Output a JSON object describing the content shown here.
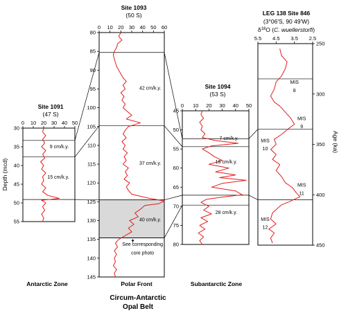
{
  "figure": {
    "belt_title": [
      "Circum-Antarctic",
      "Opal Belt"
    ],
    "zones": [
      "Antarctic Zone",
      "Polar Front",
      "Subantarctic Zone"
    ],
    "colors": {
      "series": "#e31a1c",
      "axes": "#000000",
      "shade": "#d9d9d9"
    }
  },
  "chart_data": [
    {
      "id": "site1091",
      "type": "line",
      "title": "Site 1091",
      "subtitle": "(47 S)",
      "ylabel": "Depth (mcd)",
      "xlim": [
        0,
        50
      ],
      "xticks": [
        0,
        10,
        20,
        30,
        40,
        50
      ],
      "ylim": [
        30,
        55
      ],
      "yticks": [
        30,
        35,
        40,
        45,
        50,
        55
      ],
      "boundaries": [
        33.3,
        37.7,
        49.1
      ],
      "annotations": [
        {
          "text": "9 cm/k.y.",
          "x": 35,
          "y": 35.4
        },
        {
          "text": "15 cm/k.y.",
          "x": 34,
          "y": 43.5
        }
      ],
      "series": [
        {
          "points": [
            [
              20,
              30
            ],
            [
              19,
              31
            ],
            [
              22,
              32
            ],
            [
              19,
              33
            ],
            [
              21,
              34
            ],
            [
              18,
              35
            ],
            [
              22,
              36
            ],
            [
              19,
              37
            ],
            [
              21,
              38
            ],
            [
              17,
              39
            ],
            [
              20,
              40
            ],
            [
              18,
              41
            ],
            [
              22,
              42
            ],
            [
              19,
              43
            ],
            [
              20,
              44
            ],
            [
              18,
              45
            ],
            [
              22,
              46
            ],
            [
              19,
              47
            ],
            [
              24,
              48
            ],
            [
              35,
              48.8
            ],
            [
              18,
              49.3
            ],
            [
              22,
              50
            ],
            [
              19,
              51
            ],
            [
              21,
              52
            ],
            [
              18,
              53
            ],
            [
              20,
              54
            ],
            [
              19,
              55
            ]
          ]
        }
      ]
    },
    {
      "id": "site1093",
      "type": "line",
      "title": "Site 1093",
      "subtitle": "(50 S)",
      "xlim": [
        0,
        60
      ],
      "xticks": [
        0,
        10,
        20,
        30,
        40,
        50,
        60
      ],
      "ylim": [
        80,
        145
      ],
      "yticks": [
        80,
        85,
        90,
        95,
        100,
        105,
        110,
        115,
        120,
        125,
        130,
        135,
        140,
        145
      ],
      "boundaries": [
        85.3,
        104.8,
        124.5,
        134.6
      ],
      "shaded_interval": [
        124.5,
        134.6
      ],
      "annotations": [
        {
          "text": "42 cm/k.y.",
          "x": 47,
          "y": 95.2
        },
        {
          "text": "37 cm/k.y.",
          "x": 47,
          "y": 115.2
        },
        {
          "text": "40 cm/k.y.",
          "x": 47,
          "y": 130.2
        },
        {
          "text": "See corresponding",
          "x": 40,
          "y": 136.7
        },
        {
          "text": "core photo",
          "x": 40,
          "y": 139.0
        }
      ],
      "series": [
        {
          "points": [
            [
              20,
              80
            ],
            [
              18,
              81
            ],
            [
              21,
              82
            ],
            [
              17,
              83
            ],
            [
              16,
              84
            ],
            [
              14,
              85
            ],
            [
              13,
              86
            ],
            [
              14,
              87
            ],
            [
              15,
              88
            ],
            [
              16,
              89
            ],
            [
              18,
              90
            ],
            [
              20,
              91
            ],
            [
              22,
              92
            ],
            [
              25,
              93
            ],
            [
              22,
              94
            ],
            [
              24,
              95
            ],
            [
              20,
              96
            ],
            [
              23,
              97
            ],
            [
              21,
              98
            ],
            [
              24,
              99
            ],
            [
              22,
              100
            ],
            [
              26,
              101
            ],
            [
              30,
              102
            ],
            [
              25,
              103
            ],
            [
              38,
              104
            ],
            [
              27,
              105
            ],
            [
              24,
              106
            ],
            [
              22,
              107
            ],
            [
              25,
              108
            ],
            [
              21,
              109
            ],
            [
              24,
              110
            ],
            [
              22,
              111
            ],
            [
              26,
              112
            ],
            [
              23,
              113
            ],
            [
              25,
              114
            ],
            [
              22,
              115
            ],
            [
              27,
              116
            ],
            [
              24,
              117
            ],
            [
              26,
              118
            ],
            [
              23,
              119
            ],
            [
              28,
              120
            ],
            [
              25,
              121
            ],
            [
              27,
              122
            ],
            [
              30,
              123
            ],
            [
              45,
              124
            ],
            [
              60,
              124.8
            ],
            [
              55,
              125.5
            ],
            [
              42,
              126
            ],
            [
              38,
              127
            ],
            [
              33,
              128
            ],
            [
              36,
              129
            ],
            [
              28,
              130
            ],
            [
              32,
              131
            ],
            [
              27,
              132
            ],
            [
              30,
              133
            ],
            [
              24,
              134
            ],
            [
              18,
              135
            ],
            [
              15,
              136
            ],
            [
              17,
              137
            ],
            [
              14,
              138
            ],
            [
              16,
              139
            ],
            [
              14,
              140
            ],
            [
              15,
              141
            ],
            [
              13,
              142
            ],
            [
              16,
              143
            ],
            [
              14,
              144
            ],
            [
              15,
              145
            ]
          ]
        }
      ]
    },
    {
      "id": "site1094",
      "type": "line",
      "title": "Site 1094",
      "subtitle": "(53 S)",
      "xlim": [
        0,
        50
      ],
      "xticks": [
        0,
        10,
        20,
        30,
        40,
        50
      ],
      "ylim": [
        45,
        80
      ],
      "yticks": [
        45,
        50,
        55,
        60,
        65,
        70,
        75,
        80
      ],
      "boundaries": [
        52.3,
        54.4,
        67.1,
        69.7
      ],
      "annotations": [
        {
          "text": "7 cm/k.y.",
          "x": 35,
          "y": 52.6
        },
        {
          "text": "18 cm/k.y.",
          "x": 33,
          "y": 58.8
        },
        {
          "text": "28 cm/k.y.",
          "x": 33,
          "y": 72.0
        }
      ],
      "series": [
        {
          "points": [
            [
              15,
              45
            ],
            [
              14,
              46
            ],
            [
              16,
              47
            ],
            [
              13,
              48
            ],
            [
              15,
              49
            ],
            [
              14,
              50
            ],
            [
              17,
              51
            ],
            [
              15,
              52
            ],
            [
              25,
              52.8
            ],
            [
              42,
              53.5
            ],
            [
              22,
              54.2
            ],
            [
              15,
              55
            ],
            [
              20,
              56
            ],
            [
              24,
              57
            ],
            [
              30,
              58
            ],
            [
              20,
              59
            ],
            [
              35,
              60
            ],
            [
              25,
              61
            ],
            [
              40,
              61.8
            ],
            [
              28,
              62.5
            ],
            [
              48,
              63.2
            ],
            [
              30,
              64
            ],
            [
              22,
              65
            ],
            [
              40,
              66
            ],
            [
              45,
              67
            ],
            [
              30,
              67.6
            ],
            [
              18,
              68.2
            ],
            [
              14,
              69
            ],
            [
              20,
              70
            ],
            [
              16,
              71
            ],
            [
              22,
              72
            ],
            [
              14,
              73
            ],
            [
              19,
              74
            ],
            [
              13,
              75
            ],
            [
              17,
              76
            ],
            [
              12,
              77
            ],
            [
              16,
              78
            ],
            [
              13,
              79
            ],
            [
              15,
              80
            ]
          ]
        }
      ]
    },
    {
      "id": "site846",
      "type": "line",
      "title": "LEG 138  Site 846",
      "subtitle": "(3°06'S, 90 49'W)",
      "ylabel": "Age (ka)",
      "xlim": [
        5.5,
        2.5
      ],
      "xticks": [
        5.5,
        4.5,
        3.5,
        2.5
      ],
      "ylim": [
        250,
        450
      ],
      "yticks": [
        250,
        300,
        350,
        400,
        450
      ],
      "boundaries": [
        285,
        335,
        405
      ],
      "annotations": [
        {
          "text": "MIS",
          "x": 3.5,
          "y": 290
        },
        {
          "text": "8",
          "x": 3.5,
          "y": 298
        },
        {
          "text": "MIS",
          "x": 3.1,
          "y": 326
        },
        {
          "text": "9",
          "x": 3.1,
          "y": 334
        },
        {
          "text": "MIS",
          "x": 5.1,
          "y": 348
        },
        {
          "text": "10",
          "x": 5.1,
          "y": 356
        },
        {
          "text": "MIS",
          "x": 3.1,
          "y": 392
        },
        {
          "text": "11",
          "x": 3.1,
          "y": 400
        },
        {
          "text": "MIS",
          "x": 5.1,
          "y": 426
        },
        {
          "text": "12",
          "x": 5.1,
          "y": 434
        }
      ],
      "series": [
        {
          "points": [
            [
              4.3,
              255
            ],
            [
              4.2,
              262
            ],
            [
              3.9,
              268
            ],
            [
              4.0,
              275
            ],
            [
              4.2,
              282
            ],
            [
              4.5,
              288
            ],
            [
              4.6,
              295
            ],
            [
              4.8,
              302
            ],
            [
              4.6,
              308
            ],
            [
              4.3,
              312
            ],
            [
              4.0,
              318
            ],
            [
              3.7,
              324
            ],
            [
              3.5,
              330
            ],
            [
              3.8,
              334
            ],
            [
              4.2,
              340
            ],
            [
              4.6,
              345
            ],
            [
              4.5,
              350
            ],
            [
              4.8,
              355
            ],
            [
              4.5,
              360
            ],
            [
              4.7,
              365
            ],
            [
              4.3,
              370
            ],
            [
              4.5,
              376
            ],
            [
              4.2,
              382
            ],
            [
              4.0,
              388
            ],
            [
              3.6,
              393
            ],
            [
              3.4,
              398
            ],
            [
              3.2,
              402
            ],
            [
              3.8,
              407
            ],
            [
              4.2,
              410
            ],
            [
              4.4,
              413
            ],
            [
              4.7,
              418
            ],
            [
              4.8,
              424
            ],
            [
              4.5,
              429
            ],
            [
              4.9,
              434
            ],
            [
              4.6,
              438
            ],
            [
              4.8,
              443
            ],
            [
              4.7,
              448
            ]
          ]
        }
      ]
    }
  ]
}
